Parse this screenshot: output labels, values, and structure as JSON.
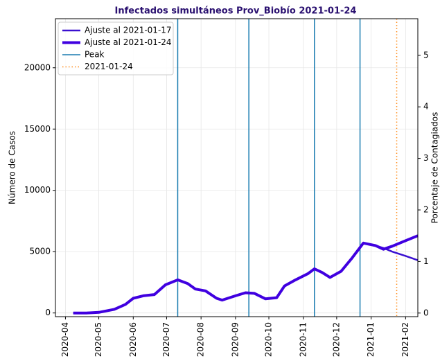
{
  "chart_data": {
    "type": "line",
    "title": "Infectados simultáneos Prov_Biobío 2021-01-24",
    "ylabel": "Número de Casos",
    "y2label": "Porcentaje de Contagiados",
    "x": [
      "2020-04-08",
      "2020-04-20",
      "2020-05-01",
      "2020-05-15",
      "2020-05-25",
      "2020-06-01",
      "2020-06-10",
      "2020-06-20",
      "2020-06-30",
      "2020-07-11",
      "2020-07-20",
      "2020-07-27",
      "2020-08-05",
      "2020-08-15",
      "2020-08-20",
      "2020-09-01",
      "2020-09-10",
      "2020-09-18",
      "2020-09-28",
      "2020-10-08",
      "2020-10-15",
      "2020-10-25",
      "2020-11-05",
      "2020-11-11",
      "2020-11-18",
      "2020-11-25",
      "2020-12-05",
      "2020-12-15",
      "2020-12-25",
      "2021-01-05",
      "2021-01-12",
      "2021-01-20",
      "2021-02-01",
      "2021-02-12"
    ],
    "series": [
      {
        "name": "Ajuste al 2021-01-17",
        "color": "#3a10d0",
        "width": 2.5,
        "values": [
          0,
          0,
          50,
          300,
          700,
          1200,
          1400,
          1500,
          2300,
          2700,
          2400,
          1950,
          1800,
          1200,
          1050,
          1400,
          1650,
          1600,
          1150,
          1250,
          2200,
          2700,
          3200,
          3600,
          3300,
          2900,
          3400,
          4500,
          5700,
          5500,
          5300,
          5000,
          4650,
          4300
        ]
      },
      {
        "name": "Ajuste al 2021-01-24",
        "color": "#4000e0",
        "width": 4,
        "values": [
          0,
          0,
          50,
          300,
          700,
          1200,
          1400,
          1500,
          2300,
          2700,
          2400,
          1950,
          1800,
          1200,
          1050,
          1400,
          1650,
          1600,
          1150,
          1250,
          2200,
          2700,
          3200,
          3600,
          3300,
          2900,
          3400,
          4500,
          5700,
          5500,
          5200,
          5450,
          5900,
          6300
        ]
      }
    ],
    "peaks": {
      "name": "Peak",
      "color": "#1a7cb0",
      "x": [
        "2020-07-11",
        "2020-09-13",
        "2020-11-11",
        "2020-12-22"
      ]
    },
    "marker": {
      "name": "2021-01-24",
      "color": "#ff8c1a",
      "style": "dotted",
      "x": "2021-01-24"
    },
    "xlim": [
      "2020-03-23",
      "2021-02-12"
    ],
    "xticks": [
      {
        "value": "2020-04-01",
        "label": "2020-04"
      },
      {
        "value": "2020-05-01",
        "label": "2020-05"
      },
      {
        "value": "2020-06-01",
        "label": "2020-06"
      },
      {
        "value": "2020-07-01",
        "label": "2020-07"
      },
      {
        "value": "2020-08-01",
        "label": "2020-08"
      },
      {
        "value": "2020-09-01",
        "label": "2020-09"
      },
      {
        "value": "2020-10-01",
        "label": "2020-10"
      },
      {
        "value": "2020-11-01",
        "label": "2020-11"
      },
      {
        "value": "2020-12-01",
        "label": "2020-12"
      },
      {
        "value": "2021-01-01",
        "label": "2021-01"
      },
      {
        "value": "2021-02-01",
        "label": "2021-02"
      }
    ],
    "ylim": [
      -300,
      24000
    ],
    "yticks": [
      0,
      5000,
      10000,
      15000,
      20000
    ],
    "y2lim": [
      -0.07,
      5.71
    ],
    "y2ticks": [
      0,
      1,
      2,
      3,
      4,
      5
    ],
    "grid": true,
    "legend": "upper left"
  }
}
